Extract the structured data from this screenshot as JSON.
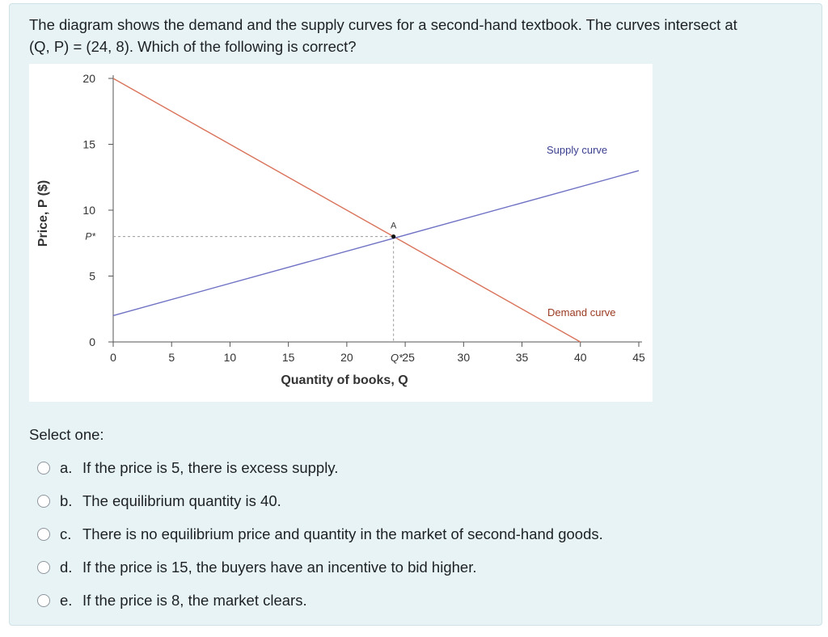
{
  "question": {
    "line1": "The diagram shows the demand and the supply curves for a second-hand textbook. The curves intersect at",
    "line2": "(Q, P) = (24, 8). Which of the following is correct?"
  },
  "chart_data": {
    "type": "line",
    "xlabel": "Quantity of books, Q",
    "ylabel": "Price, P ($)",
    "xlim": [
      0,
      45
    ],
    "ylim": [
      0,
      20
    ],
    "x_ticks": [
      "0",
      "5",
      "10",
      "15",
      "20",
      "25",
      "30",
      "35",
      "40",
      "45"
    ],
    "y_ticks": [
      "0",
      "5",
      "10",
      "15",
      "20"
    ],
    "special_ticks": {
      "x": "Q*",
      "y": "P*"
    },
    "grid": false,
    "series": [
      {
        "name": "Demand curve",
        "color": "#d9735a",
        "points": [
          [
            0,
            20
          ],
          [
            40,
            0
          ]
        ]
      },
      {
        "name": "Supply curve",
        "color": "#6f72c4",
        "points": [
          [
            0,
            2
          ],
          [
            45,
            13
          ]
        ]
      }
    ],
    "annotations": [
      {
        "label": "A",
        "x": 24,
        "y": 8
      }
    ],
    "equilibrium": {
      "x": 24,
      "y": 8
    }
  },
  "form": {
    "select_label": "Select one:",
    "options": [
      {
        "letter": "a.",
        "text": "If the price is 5, there is excess supply."
      },
      {
        "letter": "b.",
        "text": "The equilibrium quantity is 40."
      },
      {
        "letter": "c.",
        "text": "There is no equilibrium price and quantity in the market of second-hand goods."
      },
      {
        "letter": "d.",
        "text": "If the price is 15, the buyers have an incentive to bid higher."
      },
      {
        "letter": "e.",
        "text": "If the price is 8, the market clears."
      }
    ]
  }
}
